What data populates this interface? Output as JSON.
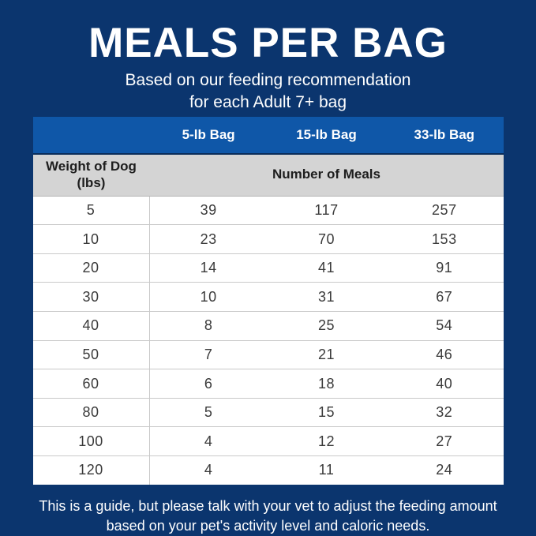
{
  "header": {
    "title": "MEALS PER BAG",
    "subtitle_line1": "Based on our feeding recommendation",
    "subtitle_line2": "for each Adult 7+ bag"
  },
  "table": {
    "bag_columns": [
      "5-lb Bag",
      "15-lb Bag",
      "33-lb Bag"
    ],
    "weight_header_line1": "Weight of Dog",
    "weight_header_line2": "(lbs)",
    "meals_header": "Number of Meals",
    "rows": [
      {
        "weight": "5",
        "meals": [
          "39",
          "117",
          "257"
        ]
      },
      {
        "weight": "10",
        "meals": [
          "23",
          "70",
          "153"
        ]
      },
      {
        "weight": "20",
        "meals": [
          "14",
          "41",
          "91"
        ]
      },
      {
        "weight": "30",
        "meals": [
          "10",
          "31",
          "67"
        ]
      },
      {
        "weight": "40",
        "meals": [
          "8",
          "25",
          "54"
        ]
      },
      {
        "weight": "50",
        "meals": [
          "7",
          "21",
          "46"
        ]
      },
      {
        "weight": "60",
        "meals": [
          "6",
          "18",
          "40"
        ]
      },
      {
        "weight": "80",
        "meals": [
          "5",
          "15",
          "32"
        ]
      },
      {
        "weight": "100",
        "meals": [
          "4",
          "12",
          "27"
        ]
      },
      {
        "weight": "120",
        "meals": [
          "4",
          "11",
          "24"
        ]
      }
    ]
  },
  "footer": {
    "line1": "This is a guide, but please talk with your vet to adjust the feeding amount",
    "line2": "based on your pet's activity level and caloric needs."
  },
  "colors": {
    "background_navy": "#0B356E",
    "header_blue": "#0F57A8",
    "gray_row": "#D4D4D4",
    "text_dark": "#3A3A3A",
    "white": "#FFFFFF"
  },
  "chart_data": {
    "type": "table",
    "title": "MEALS PER BAG",
    "subtitle": "Based on our feeding recommendation for each Adult 7+ bag",
    "columns": [
      "Weight of Dog (lbs)",
      "5-lb Bag",
      "15-lb Bag",
      "33-lb Bag"
    ],
    "value_label": "Number of Meals",
    "rows": [
      [
        5,
        39,
        117,
        257
      ],
      [
        10,
        23,
        70,
        153
      ],
      [
        20,
        14,
        41,
        91
      ],
      [
        30,
        10,
        31,
        67
      ],
      [
        40,
        8,
        25,
        54
      ],
      [
        50,
        7,
        21,
        46
      ],
      [
        60,
        6,
        18,
        40
      ],
      [
        80,
        5,
        15,
        32
      ],
      [
        100,
        4,
        12,
        27
      ],
      [
        120,
        4,
        11,
        24
      ]
    ],
    "note": "This is a guide, but please talk with your vet to adjust the feeding amount based on your pet's activity level and caloric needs."
  }
}
